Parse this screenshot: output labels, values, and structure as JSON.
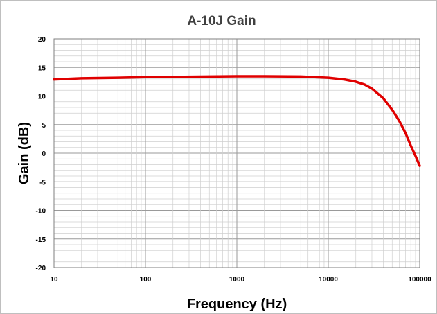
{
  "chart_data": {
    "type": "line",
    "title": "A-10J Gain",
    "xlabel": "Frequency (Hz)",
    "ylabel": "Gain (dB)",
    "x_scale": "log",
    "xlim": [
      10,
      100000
    ],
    "ylim": [
      -20,
      20
    ],
    "x_ticks": [
      "10",
      "100",
      "1000",
      "10000",
      "100000"
    ],
    "y_ticks": [
      "20",
      "15",
      "10",
      "5",
      "0",
      "-5",
      "-10",
      "-15",
      "-20"
    ],
    "grid": true,
    "legend": "none",
    "series": [
      {
        "color": "#e00000",
        "x": [
          10,
          20,
          50,
          100,
          200,
          500,
          1000,
          2000,
          5000,
          10000,
          15000,
          20000,
          25000,
          30000,
          40000,
          50000,
          60000,
          70000,
          80000,
          90000,
          100000
        ],
        "y": [
          12.9,
          13.1,
          13.2,
          13.3,
          13.35,
          13.4,
          13.45,
          13.45,
          13.4,
          13.2,
          12.9,
          12.5,
          12.0,
          11.3,
          9.6,
          7.6,
          5.6,
          3.5,
          1.3,
          -0.5,
          -2.2
        ]
      }
    ]
  }
}
